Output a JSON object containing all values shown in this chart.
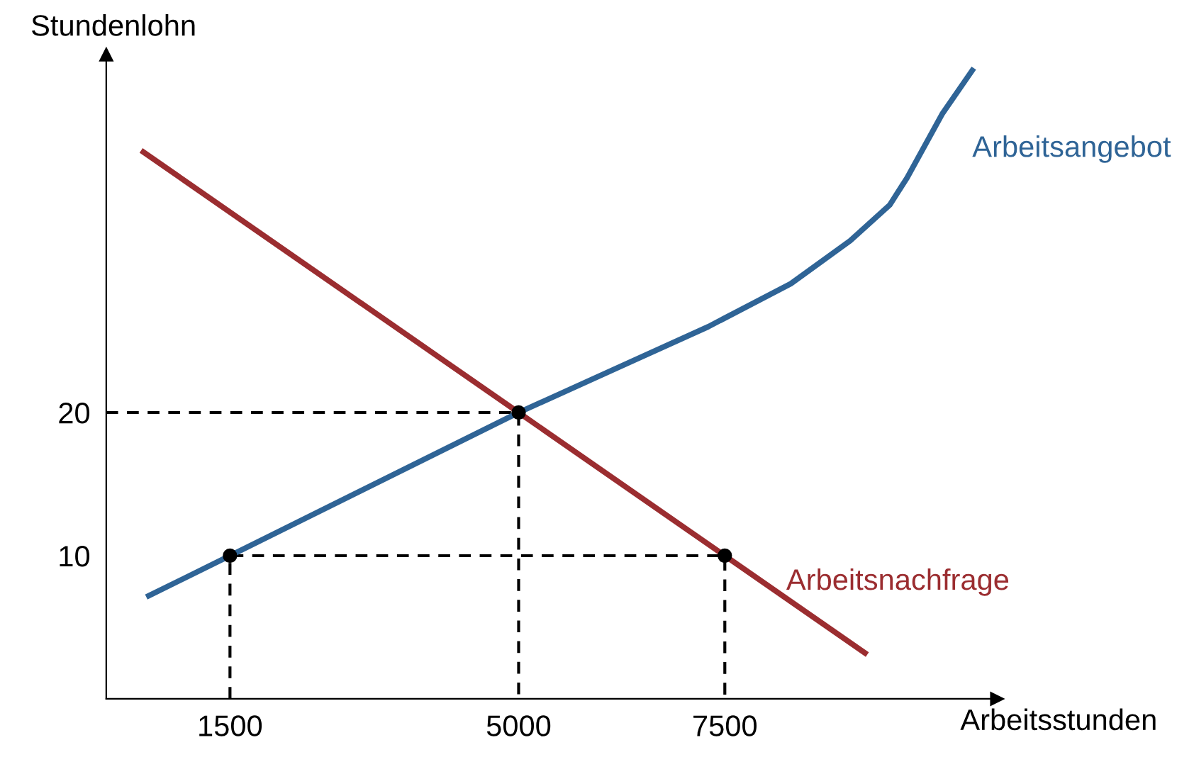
{
  "chart_data": {
    "type": "line",
    "xlabel": "Arbeitsstunden",
    "ylabel": "Stundenlohn",
    "xlim": [
      0,
      10800
    ],
    "ylim": [
      0,
      45
    ],
    "xticks": [
      1500,
      5000,
      7500
    ],
    "yticks": [
      10,
      20
    ],
    "grid": false,
    "legend": false,
    "series": [
      {
        "name": "Arbeitsnachfrage",
        "color": "#9b2d30",
        "x": [
          450,
          5000,
          7500,
          9200
        ],
        "values": [
          38.2,
          20,
          10,
          3.2
        ]
      },
      {
        "name": "Arbeitsangebot",
        "color": "#2f6496",
        "x": [
          515,
          1500,
          5000,
          7300,
          8300,
          9020,
          9500,
          9710,
          10140,
          10500
        ],
        "values": [
          7.2,
          10,
          20,
          26,
          29,
          32,
          34.5,
          36.4,
          40.9,
          43.9
        ]
      },
      {
        "type": "line",
        "line_style": "dashed",
        "color": "#000000",
        "x": [
          0,
          5000,
          5000
        ],
        "values": [
          20,
          20,
          0
        ]
      },
      {
        "type": "line",
        "line_style": "dashed",
        "color": "#000000",
        "x": [
          1500,
          1500,
          7500,
          7500
        ],
        "values": [
          0,
          10,
          10,
          0
        ]
      },
      {
        "type": "scatter",
        "marker": "circle",
        "color": "#000000",
        "x": [
          1500,
          5000,
          7500
        ],
        "values": [
          10,
          20,
          10
        ]
      }
    ]
  }
}
